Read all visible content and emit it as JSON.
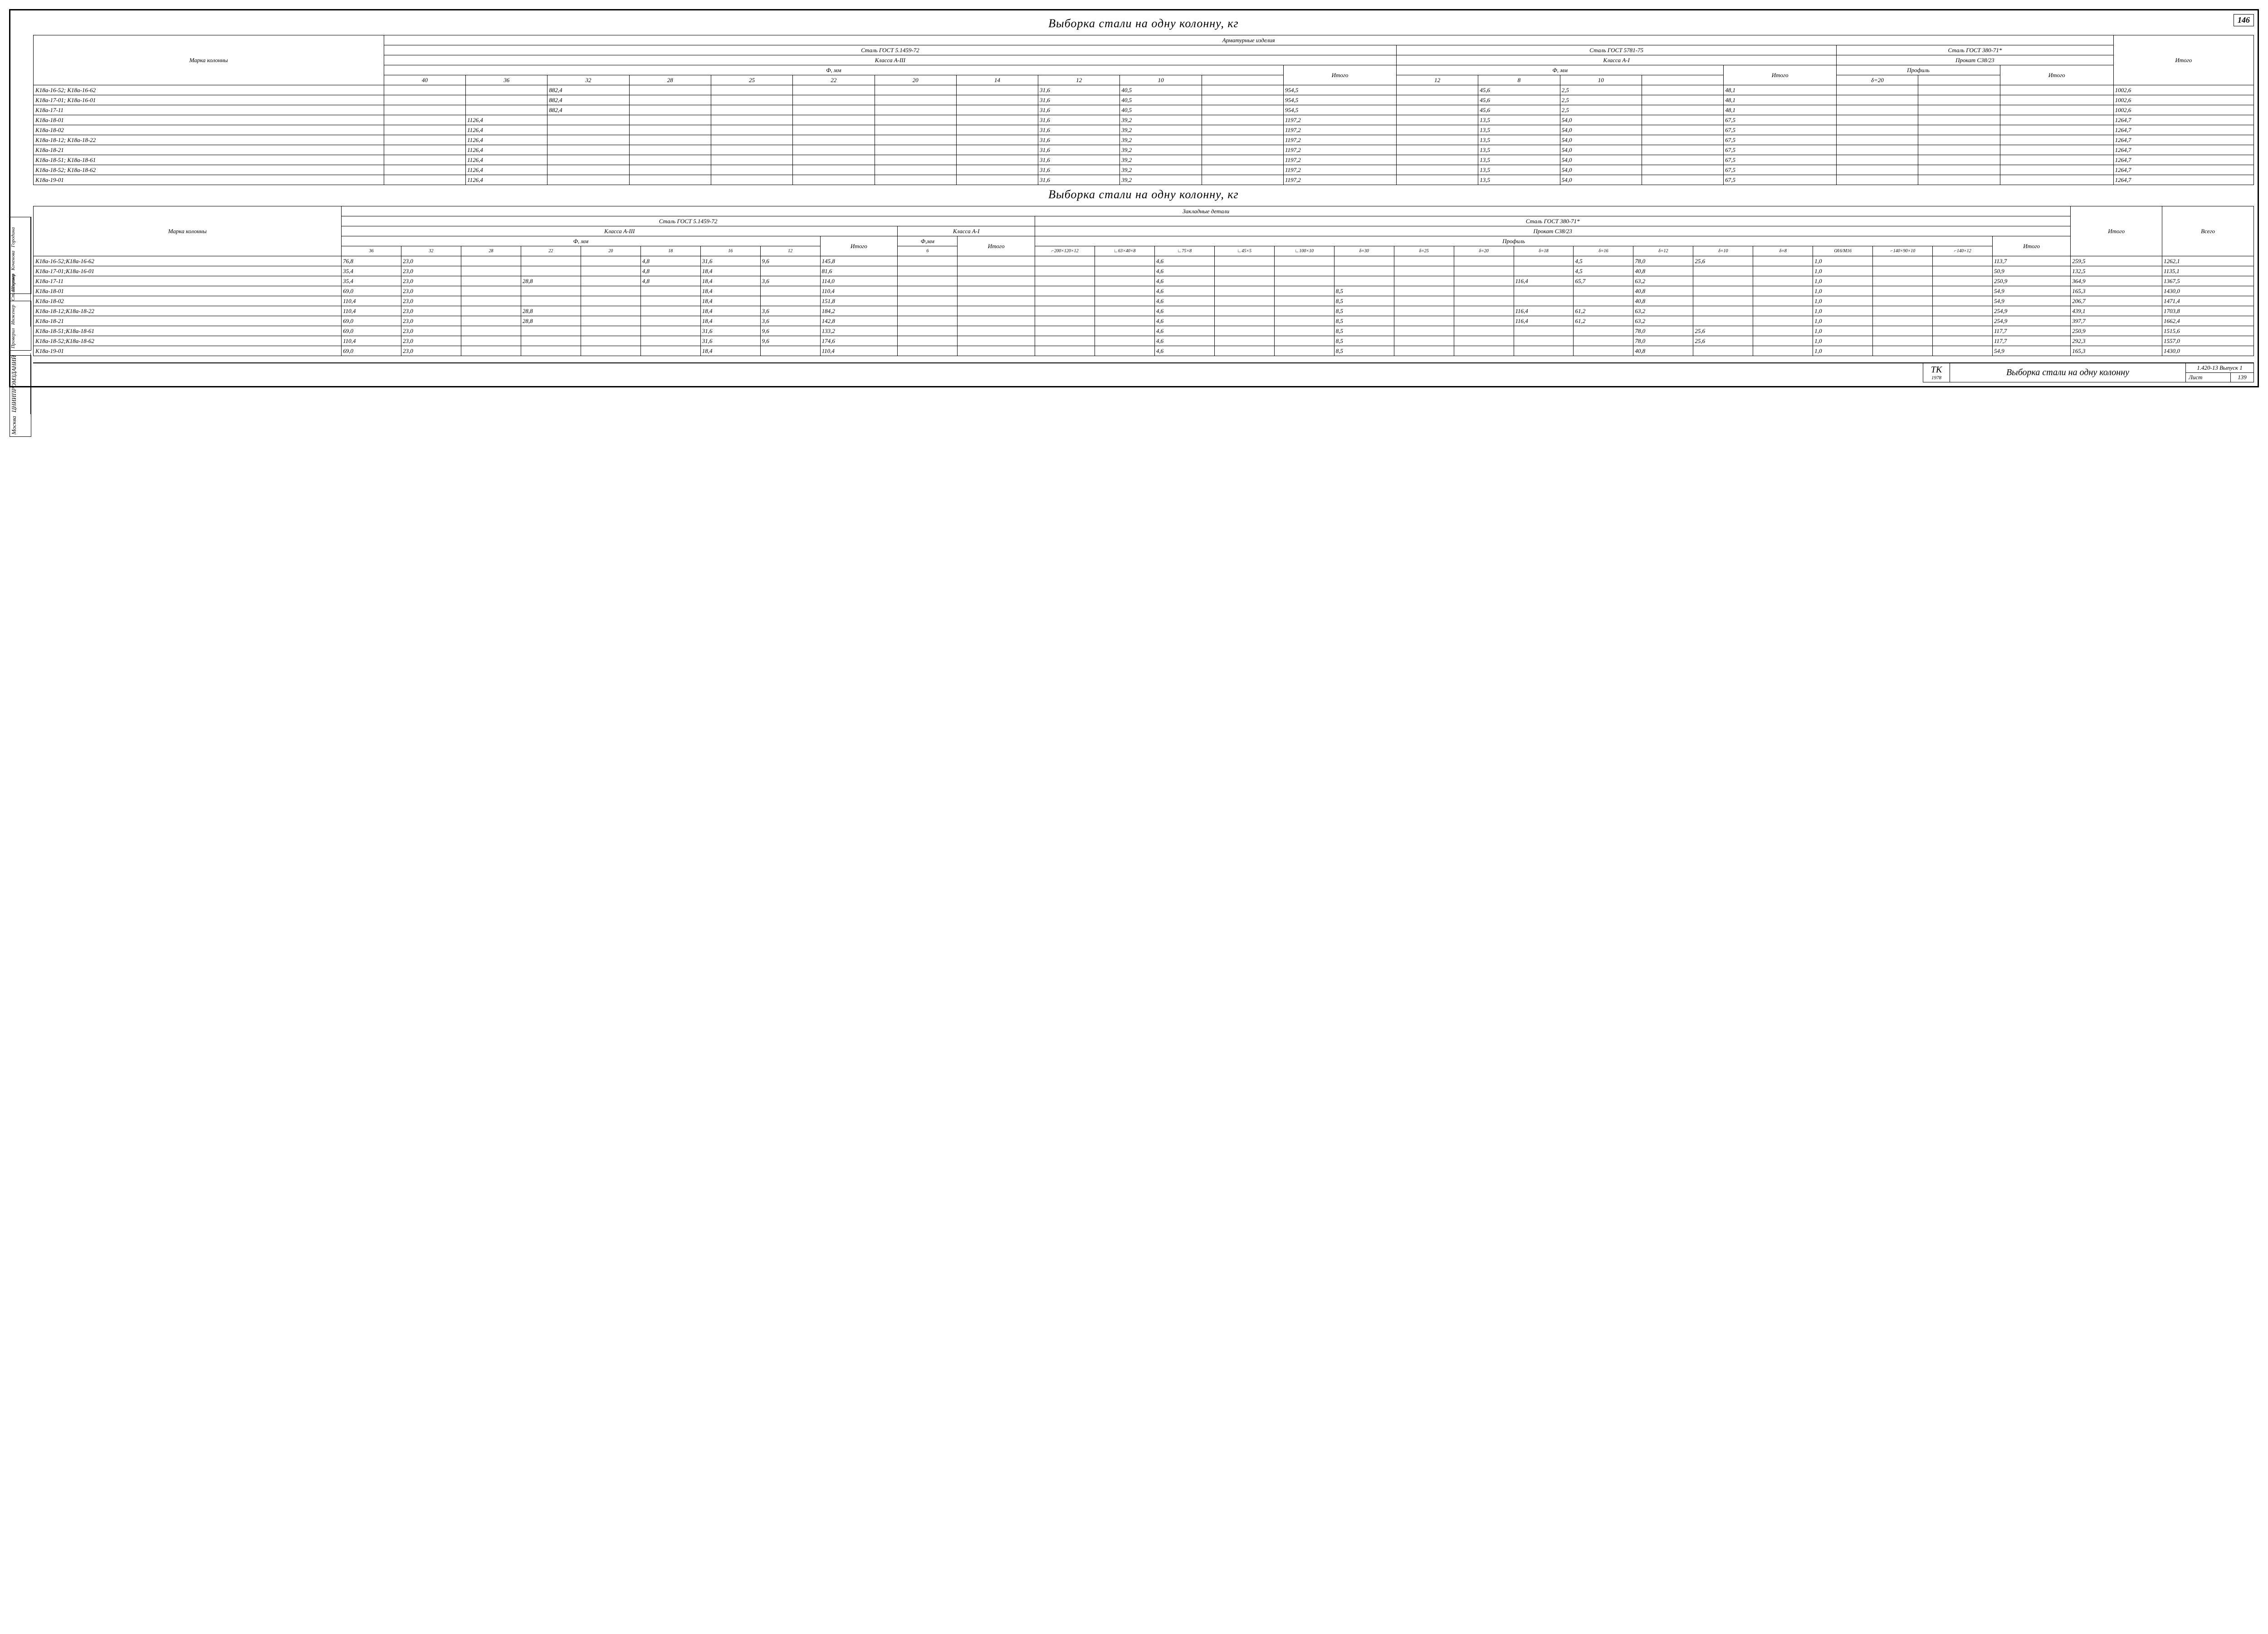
{
  "page_corner": "146",
  "title": "Выборка  стали  на  одну  колонну, кг",
  "side_a": [
    "Шорина",
    "Коченова",
    "Городина",
    ""
  ],
  "side_b": [
    "Проверил",
    "Инженер",
    "Ст.инженер"
  ],
  "side_c": [
    "Москва",
    "ЦНИИПРОМЗДАНИЙ"
  ],
  "t1": {
    "super": "Арматурные   изделия",
    "g1_hdr": "Сталь ГОСТ 5.1459-72",
    "g1_sub": "Класса А-III",
    "g1_unit": "Ф, мм",
    "g2_hdr": "Сталь ГОСТ 5781-75",
    "g2_sub": "Класса А-I",
    "g2_unit": "Ф, мм",
    "g3_hdr": "Сталь ГОСТ 380-71*",
    "g3_sub": "Прокат С38/23",
    "g3_unit": "Профиль",
    "marka_hdr": "Марка колонны",
    "itogo": "Итого",
    "cols_g1": [
      "40",
      "36",
      "32",
      "28",
      "25",
      "22",
      "20",
      "14",
      "12",
      "10",
      ""
    ],
    "cols_g2": [
      "12",
      "8",
      "10",
      ""
    ],
    "cols_g3": [
      "δ=20",
      ""
    ],
    "rows": [
      {
        "m": "К18а-16-52; К18а-16-62",
        "g1": [
          "",
          "",
          "882,4",
          "",
          "",
          "",
          "",
          "",
          "31,6",
          "40,5",
          ""
        ],
        "s1": "954,5",
        "g2": [
          "",
          "45,6",
          "2,5",
          ""
        ],
        "s2": "48,1",
        "g3": [
          "",
          ""
        ],
        "s3": "",
        "it": "1002,6"
      },
      {
        "m": "К18а-17-01; К18а-16-01",
        "g1": [
          "",
          "",
          "882,4",
          "",
          "",
          "",
          "",
          "",
          "31,6",
          "40,5",
          ""
        ],
        "s1": "954,5",
        "g2": [
          "",
          "45,6",
          "2,5",
          ""
        ],
        "s2": "48,1",
        "g3": [
          "",
          ""
        ],
        "s3": "",
        "it": "1002,6"
      },
      {
        "m": "К18а-17-11",
        "g1": [
          "",
          "",
          "882,4",
          "",
          "",
          "",
          "",
          "",
          "31,6",
          "40,5",
          ""
        ],
        "s1": "954,5",
        "g2": [
          "",
          "45,6",
          "2,5",
          ""
        ],
        "s2": "48,1",
        "g3": [
          "",
          ""
        ],
        "s3": "",
        "it": "1002,6"
      },
      {
        "m": "К18а-18-01",
        "g1": [
          "",
          "1126,4",
          "",
          "",
          "",
          "",
          "",
          "",
          "31,6",
          "39,2",
          ""
        ],
        "s1": "1197,2",
        "g2": [
          "",
          "13,5",
          "54,0",
          ""
        ],
        "s2": "67,5",
        "g3": [
          "",
          ""
        ],
        "s3": "",
        "it": "1264,7"
      },
      {
        "m": "К18а-18-02",
        "g1": [
          "",
          "1126,4",
          "",
          "",
          "",
          "",
          "",
          "",
          "31,6",
          "39,2",
          ""
        ],
        "s1": "1197,2",
        "g2": [
          "",
          "13,5",
          "54,0",
          ""
        ],
        "s2": "67,5",
        "g3": [
          "",
          ""
        ],
        "s3": "",
        "it": "1264,7"
      },
      {
        "m": "К18а-18-12; К18а-18-22",
        "g1": [
          "",
          "1126,4",
          "",
          "",
          "",
          "",
          "",
          "",
          "31,6",
          "39,2",
          ""
        ],
        "s1": "1197,2",
        "g2": [
          "",
          "13,5",
          "54,0",
          ""
        ],
        "s2": "67,5",
        "g3": [
          "",
          ""
        ],
        "s3": "",
        "it": "1264,7"
      },
      {
        "m": "К18а-18-21",
        "g1": [
          "",
          "1126,4",
          "",
          "",
          "",
          "",
          "",
          "",
          "31,6",
          "39,2",
          ""
        ],
        "s1": "1197,2",
        "g2": [
          "",
          "13,5",
          "54,0",
          ""
        ],
        "s2": "67,5",
        "g3": [
          "",
          ""
        ],
        "s3": "",
        "it": "1264,7"
      },
      {
        "m": "К18а-18-51; К18а-18-61",
        "g1": [
          "",
          "1126,4",
          "",
          "",
          "",
          "",
          "",
          "",
          "31,6",
          "39,2",
          ""
        ],
        "s1": "1197,2",
        "g2": [
          "",
          "13,5",
          "54,0",
          ""
        ],
        "s2": "67,5",
        "g3": [
          "",
          ""
        ],
        "s3": "",
        "it": "1264,7"
      },
      {
        "m": "К18а-18-52; К18а-18-62",
        "g1": [
          "",
          "1126,4",
          "",
          "",
          "",
          "",
          "",
          "",
          "31,6",
          "39,2",
          ""
        ],
        "s1": "1197,2",
        "g2": [
          "",
          "13,5",
          "54,0",
          ""
        ],
        "s2": "67,5",
        "g3": [
          "",
          ""
        ],
        "s3": "",
        "it": "1264,7"
      },
      {
        "m": "К18а-19-01",
        "g1": [
          "",
          "1126,4",
          "",
          "",
          "",
          "",
          "",
          "",
          "31,6",
          "39,2",
          ""
        ],
        "s1": "1197,2",
        "g2": [
          "",
          "13,5",
          "54,0",
          ""
        ],
        "s2": "67,5",
        "g3": [
          "",
          ""
        ],
        "s3": "",
        "it": "1264,7"
      }
    ]
  },
  "t2": {
    "super": "Закладные   детали",
    "g1_hdr": "Сталь  ГОСТ 5.1459-72",
    "g1a_sub": "Класса А-III",
    "g1a_unit": "Ф, мм",
    "g1b_sub": "Класса А-I",
    "g1b_unit": "Ф,мм",
    "g2_hdr": "Сталь  ГОСТ 380-71*",
    "g2_sub": "Прокат С38/23",
    "g2_unit": "Профиль",
    "marka_hdr": "Марка колонны",
    "itogo": "Итого",
    "vsego": "Всего",
    "cols_a": [
      "36",
      "32",
      "28",
      "22",
      "20",
      "18",
      "16",
      "12"
    ],
    "cols_b": [
      "6"
    ],
    "cols_p": [
      "⌐200×120×12",
      "∟63×40×8",
      "∟75×8",
      "∟45×5",
      "∟100×10",
      "δ=30",
      "δ=25",
      "δ=20",
      "δ=18",
      "δ=16",
      "δ=12",
      "δ=10",
      "δ=8",
      "O̸16/M16",
      "⌐140×90×10",
      "⌐140×12"
    ],
    "rows": [
      {
        "m": "К18а-16-52;К18а-16-62",
        "a": [
          "76,8",
          "23,0",
          "",
          "",
          "",
          "4,8",
          "31,6",
          "9,6"
        ],
        "sa": "145,8",
        "b": [
          ""
        ],
        "sb": "",
        "p": [
          "",
          "",
          "4,6",
          "",
          "",
          "",
          "",
          "",
          "",
          "4,5",
          "78,0",
          "25,6",
          "",
          "1,0",
          "",
          ""
        ],
        "sp": "113,7",
        "it": "259,5",
        "vs": "1262,1"
      },
      {
        "m": "К18а-17-01;К18а-16-01",
        "a": [
          "35,4",
          "23,0",
          "",
          "",
          "",
          "4,8",
          "18,4",
          ""
        ],
        "sa": "81,6",
        "b": [
          ""
        ],
        "sb": "",
        "p": [
          "",
          "",
          "4,6",
          "",
          "",
          "",
          "",
          "",
          "",
          "4,5",
          "40,8",
          "",
          "",
          "1,0",
          "",
          ""
        ],
        "sp": "50,9",
        "it": "132,5",
        "vs": "1135,1"
      },
      {
        "m": "К18а-17-11",
        "a": [
          "35,4",
          "23,0",
          "",
          "28,8",
          "",
          "4,8",
          "18,4",
          "3,6"
        ],
        "sa": "114,0",
        "b": [
          ""
        ],
        "sb": "",
        "p": [
          "",
          "",
          "4,6",
          "",
          "",
          "",
          "",
          "",
          "116,4",
          "65,7",
          "63,2",
          "",
          "",
          "1,0",
          "",
          ""
        ],
        "sp": "250,9",
        "it": "364,9",
        "vs": "1367,5"
      },
      {
        "m": "К18а-18-01",
        "a": [
          "69,0",
          "23,0",
          "",
          "",
          "",
          "",
          "18,4",
          ""
        ],
        "sa": "110,4",
        "b": [
          ""
        ],
        "sb": "",
        "p": [
          "",
          "",
          "4,6",
          "",
          "",
          "8,5",
          "",
          "",
          "",
          "",
          "40,8",
          "",
          "",
          "1,0",
          "",
          ""
        ],
        "sp": "54,9",
        "it": "165,3",
        "vs": "1430,0"
      },
      {
        "m": "К18а-18-02",
        "a": [
          "110,4",
          "23,0",
          "",
          "",
          "",
          "",
          "18,4",
          ""
        ],
        "sa": "151,8",
        "b": [
          ""
        ],
        "sb": "",
        "p": [
          "",
          "",
          "4,6",
          "",
          "",
          "8,5",
          "",
          "",
          "",
          "",
          "40,8",
          "",
          "",
          "1,0",
          "",
          ""
        ],
        "sp": "54,9",
        "it": "206,7",
        "vs": "1471,4"
      },
      {
        "m": "К18а-18-12;К18а-18-22",
        "a": [
          "110,4",
          "23,0",
          "",
          "28,8",
          "",
          "",
          "18,4",
          "3,6"
        ],
        "sa": "184,2",
        "b": [
          ""
        ],
        "sb": "",
        "p": [
          "",
          "",
          "4,6",
          "",
          "",
          "8,5",
          "",
          "",
          "116,4",
          "61,2",
          "63,2",
          "",
          "",
          "1,0",
          "",
          ""
        ],
        "sp": "254,9",
        "it": "439,1",
        "vs": "1703,8"
      },
      {
        "m": "К18а-18-21",
        "a": [
          "69,0",
          "23,0",
          "",
          "28,8",
          "",
          "",
          "18,4",
          "3,6"
        ],
        "sa": "142,8",
        "b": [
          ""
        ],
        "sb": "",
        "p": [
          "",
          "",
          "4,6",
          "",
          "",
          "8,5",
          "",
          "",
          "116,4",
          "61,2",
          "63,2",
          "",
          "",
          "1,0",
          "",
          ""
        ],
        "sp": "254,9",
        "it": "397,7",
        "vs": "1662,4"
      },
      {
        "m": "К18а-18-51;К18а-18-61",
        "a": [
          "69,0",
          "23,0",
          "",
          "",
          "",
          "",
          "31,6",
          "9,6"
        ],
        "sa": "133,2",
        "b": [
          ""
        ],
        "sb": "",
        "p": [
          "",
          "",
          "4,6",
          "",
          "",
          "8,5",
          "",
          "",
          "",
          "",
          "78,0",
          "25,6",
          "",
          "1,0",
          "",
          ""
        ],
        "sp": "117,7",
        "it": "250,9",
        "vs": "1515,6"
      },
      {
        "m": "К18а-18-52;К18а-18-62",
        "a": [
          "110,4",
          "23,0",
          "",
          "",
          "",
          "",
          "31,6",
          "9,6"
        ],
        "sa": "174,6",
        "b": [
          ""
        ],
        "sb": "",
        "p": [
          "",
          "",
          "4,6",
          "",
          "",
          "8,5",
          "",
          "",
          "",
          "",
          "78,0",
          "25,6",
          "",
          "1,0",
          "",
          ""
        ],
        "sp": "117,7",
        "it": "292,3",
        "vs": "1557,0"
      },
      {
        "m": "К18а-19-01",
        "a": [
          "69,0",
          "23,0",
          "",
          "",
          "",
          "",
          "18,4",
          ""
        ],
        "sa": "110,4",
        "b": [
          ""
        ],
        "sb": "",
        "p": [
          "",
          "",
          "4,6",
          "",
          "",
          "8,5",
          "",
          "",
          "",
          "",
          "40,8",
          "",
          "",
          "1,0",
          "",
          ""
        ],
        "sp": "54,9",
        "it": "165,3",
        "vs": "1430,0"
      }
    ]
  },
  "stamp": {
    "tk": "ТК",
    "tk_year": "1978",
    "title": "Выборка стали на одну колонну",
    "code": "1.420-13 Выпуск 1",
    "list_lbl": "Лист",
    "list_num": "139"
  }
}
